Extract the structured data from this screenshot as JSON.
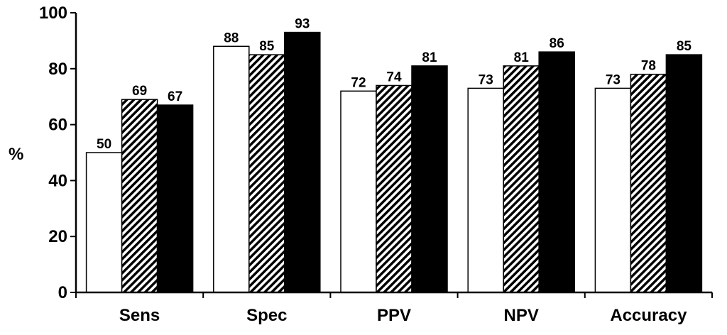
{
  "chart_data": {
    "type": "bar",
    "title": "",
    "xlabel": "",
    "ylabel": "%",
    "ylim": [
      0,
      100
    ],
    "yticks": [
      0,
      20,
      40,
      60,
      80,
      100
    ],
    "grid": false,
    "legend": "none",
    "categories": [
      "Sens",
      "Spec",
      "PPV",
      "NPV",
      "Accuracy"
    ],
    "series": [
      {
        "fill": "white",
        "values": [
          50,
          88,
          72,
          73,
          73
        ]
      },
      {
        "fill": "hatched",
        "values": [
          69,
          85,
          74,
          81,
          78
        ]
      },
      {
        "fill": "black",
        "values": [
          67,
          93,
          81,
          86,
          85
        ]
      }
    ]
  }
}
